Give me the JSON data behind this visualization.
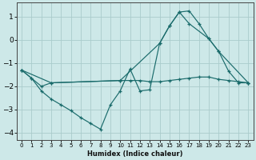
{
  "xlabel": "Humidex (Indice chaleur)",
  "background_color": "#cde8e8",
  "grid_color": "#aacccc",
  "line_color": "#1a6b6b",
  "xlim": [
    -0.5,
    23.5
  ],
  "ylim": [
    -4.3,
    1.6
  ],
  "yticks": [
    -4,
    -3,
    -2,
    -1,
    0,
    1
  ],
  "xticks": [
    0,
    1,
    2,
    3,
    4,
    5,
    6,
    7,
    8,
    9,
    10,
    11,
    12,
    13,
    14,
    15,
    16,
    17,
    18,
    19,
    20,
    21,
    22,
    23
  ],
  "series": [
    {
      "x": [
        0,
        1,
        2,
        3,
        4,
        5,
        6,
        7,
        8,
        9,
        10,
        11,
        12,
        13,
        14,
        15,
        16,
        17,
        18,
        19,
        20,
        21,
        22,
        23
      ],
      "y": [
        -1.3,
        -1.65,
        -2.2,
        -2.55,
        -2.8,
        -3.05,
        -3.35,
        -3.6,
        -3.85,
        -2.8,
        -2.2,
        -1.25,
        -2.2,
        -2.15,
        -0.15,
        0.6,
        1.2,
        1.25,
        0.7,
        0.05,
        -0.5,
        -1.35,
        -1.85,
        -1.85
      ]
    },
    {
      "x": [
        0,
        1,
        2,
        3,
        10,
        11,
        12,
        13,
        14,
        15,
        16,
        17,
        18,
        19,
        20,
        21,
        22,
        23
      ],
      "y": [
        -1.3,
        -1.65,
        -2.0,
        -1.85,
        -1.75,
        -1.75,
        -1.75,
        -1.8,
        -1.8,
        -1.75,
        -1.7,
        -1.65,
        -1.6,
        -1.6,
        -1.7,
        -1.75,
        -1.8,
        -1.85
      ]
    },
    {
      "x": [
        0,
        3,
        10,
        14,
        15,
        16,
        17,
        19,
        20,
        23
      ],
      "y": [
        -1.3,
        -1.85,
        -1.75,
        -0.15,
        0.6,
        1.2,
        0.7,
        0.05,
        -0.5,
        -1.85
      ]
    }
  ]
}
